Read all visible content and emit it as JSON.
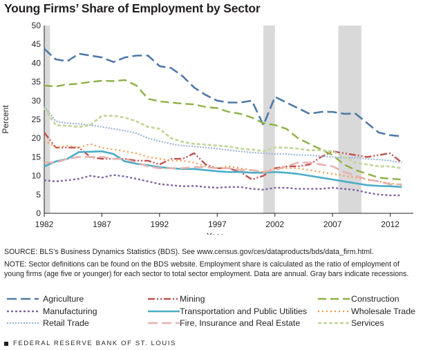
{
  "chart_data": {
    "type": "line",
    "title": "Young Firms’ Share of Employment by Sector",
    "xlabel": "Year",
    "ylabel": "Percent",
    "xlim": [
      1982,
      2014
    ],
    "ylim": [
      0,
      50
    ],
    "xticks": [
      1982,
      1987,
      1992,
      1997,
      2002,
      2007,
      2012
    ],
    "yticks": [
      0,
      5,
      10,
      15,
      20,
      25,
      30,
      35,
      40,
      45,
      50
    ],
    "grid": false,
    "legend": "bottom",
    "recessions": [
      [
        1981.5,
        1982.5
      ],
      [
        2001,
        2002
      ],
      [
        2007.5,
        2009.5
      ]
    ],
    "x": [
      1982,
      1983,
      1984,
      1985,
      1986,
      1987,
      1988,
      1989,
      1990,
      1991,
      1992,
      1993,
      1994,
      1995,
      1996,
      1997,
      1998,
      1999,
      2000,
      2001,
      2002,
      2003,
      2004,
      2005,
      2006,
      2007,
      2008,
      2009,
      2010,
      2011,
      2012,
      2013
    ],
    "series": [
      {
        "name": "Agriculture",
        "color": "#4e79a7",
        "dash": "14,6",
        "width": 2.6,
        "values": [
          43.8,
          41,
          40.5,
          42.5,
          42,
          41.5,
          40.3,
          41.5,
          42,
          42,
          39.2,
          38.7,
          36.5,
          33.5,
          31.5,
          30,
          29.5,
          29.5,
          30,
          23.5,
          31,
          29.5,
          28,
          26.5,
          27,
          27,
          26.5,
          26.5,
          24,
          21.5,
          20.8,
          20.5
        ]
      },
      {
        "name": "Mining",
        "color": "#c0504d",
        "dash": "10,3,2,3,2,3",
        "width": 2.4,
        "values": [
          21.5,
          17.5,
          17.5,
          17.5,
          15,
          14.5,
          14.5,
          14.5,
          14,
          14,
          13,
          14.5,
          14.5,
          16,
          13,
          12,
          12,
          11,
          9,
          10,
          12,
          12.5,
          12.5,
          13,
          15,
          16.5,
          16,
          15.5,
          15,
          15.5,
          16,
          13.5
        ]
      },
      {
        "name": "Construction",
        "color": "#8db043",
        "dash": "12,6",
        "width": 2.4,
        "values": [
          34,
          33.8,
          34.3,
          34.5,
          35,
          35.3,
          35.2,
          35.5,
          34,
          30.5,
          29.8,
          29.5,
          29.2,
          29,
          28.3,
          28,
          27,
          26.5,
          25.5,
          24,
          23.5,
          22.5,
          20,
          18.5,
          17,
          15.5,
          13,
          11.5,
          10.5,
          9.5,
          9.2,
          9
        ]
      },
      {
        "name": "Manufacturing",
        "color": "#7f63a3",
        "dash": "3,3",
        "width": 2.4,
        "values": [
          8.8,
          8.5,
          8.8,
          9.2,
          10,
          9.5,
          10.2,
          9.8,
          9.2,
          8.5,
          7.8,
          7.5,
          7.2,
          7.3,
          7,
          6.8,
          7,
          7,
          6.5,
          6.3,
          6.8,
          6.8,
          6.5,
          6.5,
          6.5,
          6.8,
          6.5,
          6.2,
          5.5,
          5,
          4.8,
          4.8
        ]
      },
      {
        "name": "Transportation and Public Utilities",
        "color": "#4aacc6",
        "dash": "",
        "width": 2.6,
        "values": [
          12.5,
          13.8,
          14.5,
          16.3,
          16.4,
          16.5,
          15.8,
          13.8,
          13.2,
          12.8,
          12.3,
          12,
          11.8,
          11.8,
          11.5,
          11.2,
          11,
          11,
          10.8,
          10.8,
          11,
          10.8,
          10.5,
          10,
          9.5,
          9,
          8.5,
          8,
          7.5,
          7.3,
          7.2,
          7
        ]
      },
      {
        "name": "Wholesale Trade",
        "color": "#f79646",
        "dash": "2,4",
        "width": 2.2,
        "values": [
          19.5,
          17.5,
          18,
          17.5,
          18.5,
          17.5,
          17,
          16.5,
          16,
          15,
          14.5,
          14,
          14,
          13.5,
          12.5,
          12,
          12.5,
          12,
          11.5,
          11,
          12,
          12,
          12,
          11.5,
          11,
          10.5,
          10,
          9.5,
          9,
          8.5,
          8,
          7.5
        ]
      },
      {
        "name": "Retail Trade",
        "color": "#95b3d7",
        "dash": "2,2",
        "width": 2.2,
        "values": [
          28.5,
          24.5,
          24,
          23.8,
          23.5,
          23,
          22.5,
          22,
          21.3,
          20,
          19.2,
          18.5,
          18,
          17.8,
          17.5,
          17.2,
          16.8,
          16.5,
          16.2,
          16,
          15.8,
          15.8,
          15.5,
          15.5,
          15.2,
          15,
          14.8,
          14.8,
          14.5,
          14.3,
          14,
          13.5
        ]
      },
      {
        "name": "Fire, Insurance and Real Estate",
        "color": "#e6b0ae",
        "dash": "14,6",
        "width": 2.6,
        "values": [
          13.5,
          13.5,
          14.5,
          15,
          15,
          15,
          14.5,
          14.5,
          13.5,
          12.5,
          12,
          12,
          12,
          12.3,
          12.3,
          12,
          12,
          11.5,
          11.5,
          11,
          11.5,
          12.5,
          13.5,
          13.5,
          13,
          12.5,
          11,
          10,
          9,
          8.5,
          7.7,
          7.7
        ]
      },
      {
        "name": "Services",
        "color": "#c3d69b",
        "dash": "5,3",
        "width": 2.8,
        "values": [
          28,
          23.5,
          23.3,
          23,
          23.5,
          26,
          26,
          25.5,
          24.5,
          23,
          22.5,
          20,
          19,
          18.5,
          18.3,
          18,
          17.8,
          17.2,
          17,
          16.5,
          17.5,
          17.5,
          17.2,
          16.8,
          16.8,
          16.5,
          15,
          13.5,
          13,
          12.5,
          12.5,
          12
        ]
      }
    ]
  },
  "notes": {
    "source": "SOURCE: BLS’s Business Dynamics Statistics (BDS). See www.census.gov/ces/dataproducts/bds/data_firm.html.",
    "note": "NOTE: Sector definitions can be found on the BDS website. Employment share is calculated as the ratio of employment of young firms (age five or younger) for each sector to total sector employment. Data are annual. Gray bars indicate recessions."
  },
  "footer": {
    "text": "FEDERAL RESERVE BANK OF ST. LOUIS"
  }
}
